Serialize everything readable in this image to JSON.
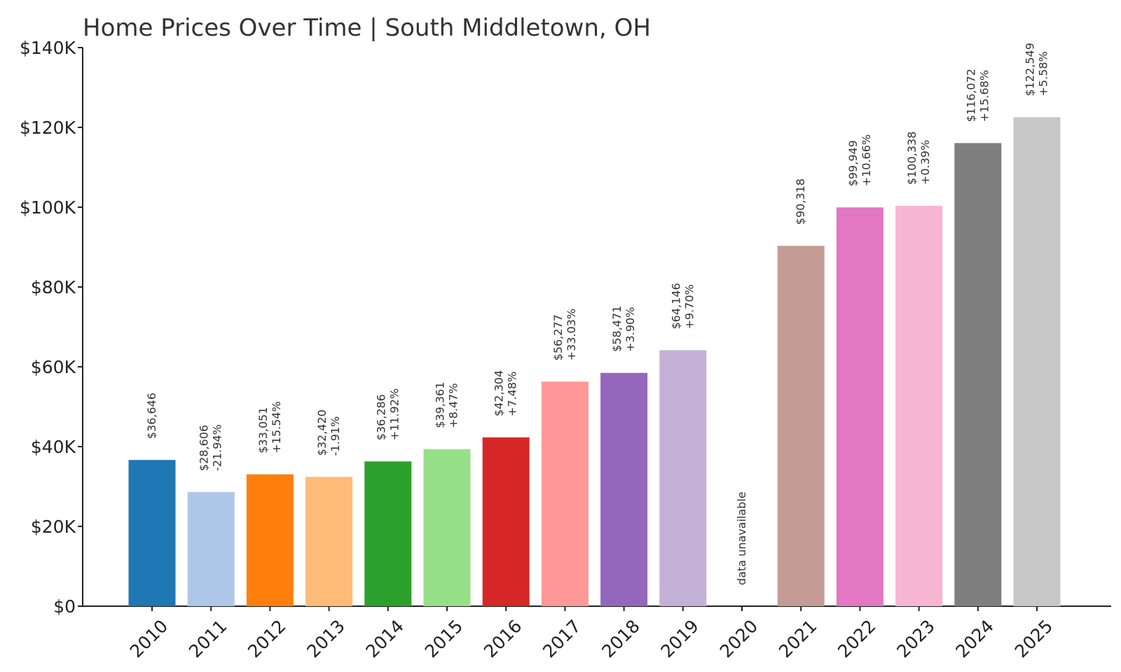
{
  "chart_data": {
    "type": "bar",
    "title": "Home Prices Over Time | South Middletown, OH",
    "xlabel": "",
    "ylabel": "",
    "ylim": [
      0,
      140000
    ],
    "y_ticks": [
      0,
      20000,
      40000,
      60000,
      80000,
      100000,
      120000,
      140000
    ],
    "y_tick_labels": [
      "$0",
      "$20K",
      "$40K",
      "$60K",
      "$80K",
      "$100K",
      "$120K",
      "$140K"
    ],
    "grid": false,
    "categories": [
      "2010",
      "2011",
      "2012",
      "2013",
      "2014",
      "2015",
      "2016",
      "2017",
      "2018",
      "2019",
      "2020",
      "2021",
      "2022",
      "2023",
      "2024",
      "2025"
    ],
    "values": [
      36646,
      28606,
      33051,
      32420,
      36286,
      39361,
      42304,
      56277,
      58471,
      64146,
      null,
      90318,
      99949,
      100338,
      116072,
      122549
    ],
    "value_labels": [
      "$36,646",
      "$28,606",
      "$33,051",
      "$32,420",
      "$36,286",
      "$39,361",
      "$42,304",
      "$56,277",
      "$58,471",
      "$64,146",
      "data unavailable",
      "$90,318",
      "$99,949",
      "$100,338",
      "$116,072",
      "$122,549"
    ],
    "change_labels": [
      "",
      "-21.94%",
      "+15.54%",
      "-1.91%",
      "+11.92%",
      "+8.47%",
      "+7.48%",
      "+33.03%",
      "+3.90%",
      "+9.70%",
      "",
      "",
      "+10.66%",
      "+0.39%",
      "+15.68%",
      "+5.58%"
    ],
    "colors": [
      "#1f77b4",
      "#aec7e8",
      "#ff7f0e",
      "#ffbb78",
      "#2ca02c",
      "#98df8a",
      "#d62728",
      "#ff9896",
      "#9467bd",
      "#c5b0d5",
      "#8c564b",
      "#c49c94",
      "#e377c2",
      "#f7b6d2",
      "#7f7f7f",
      "#c7c7c7"
    ]
  }
}
